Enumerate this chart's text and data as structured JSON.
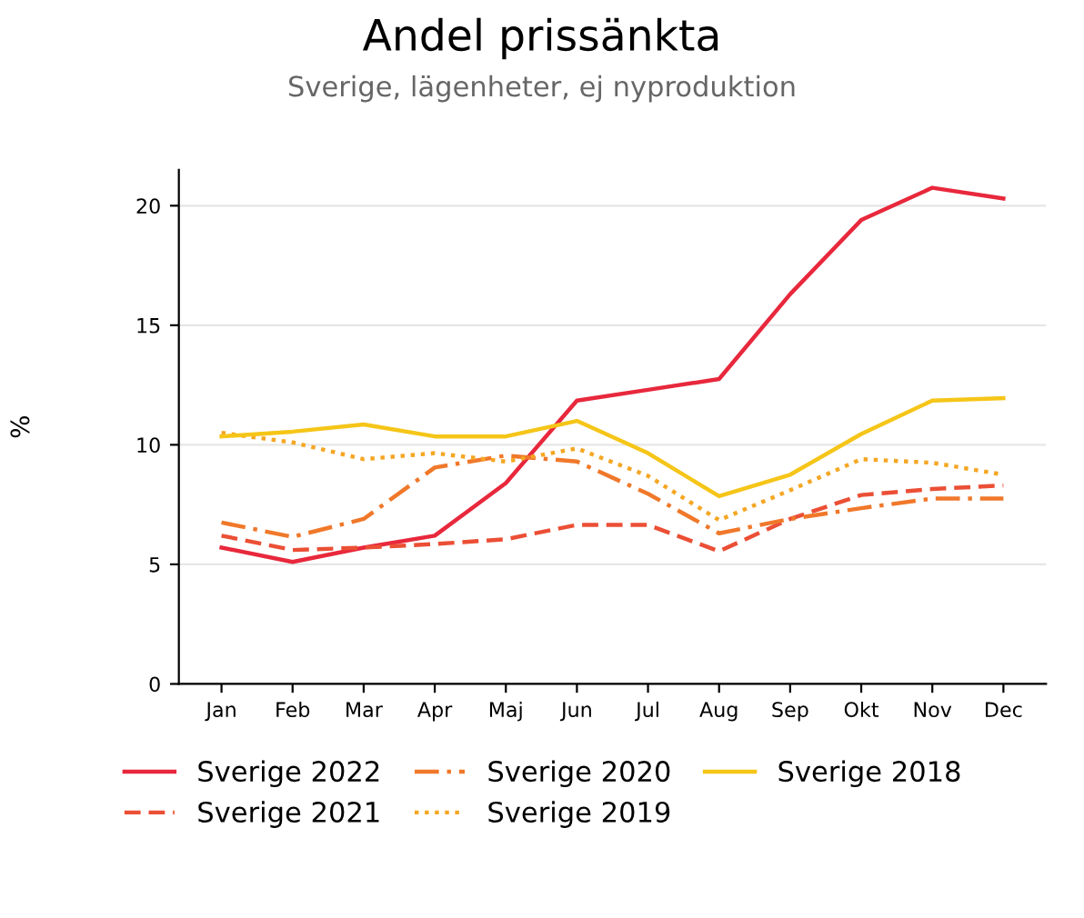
{
  "chart_data": {
    "type": "line",
    "title": "Andel prissänkta",
    "subtitle": "Sverige, lägenheter, ej nyproduktion",
    "ylabel": "%",
    "categories": [
      "Jan",
      "Feb",
      "Mar",
      "Apr",
      "Maj",
      "Jun",
      "Jul",
      "Aug",
      "Sep",
      "Okt",
      "Nov",
      "Dec"
    ],
    "series": [
      {
        "name": "Sverige 2022",
        "color": "#e8283c",
        "line_style": "solid",
        "values": [
          5.7,
          5.1,
          5.7,
          6.2,
          8.4,
          11.85,
          12.3,
          12.75,
          16.3,
          19.4,
          20.75,
          20.3
        ]
      },
      {
        "name": "Sverige 2021",
        "color": "#eb4f35",
        "line_style": "dashed",
        "values": [
          6.2,
          5.6,
          5.7,
          5.85,
          6.05,
          6.65,
          6.65,
          5.55,
          6.9,
          7.9,
          8.15,
          8.3
        ]
      },
      {
        "name": "Sverige 2020",
        "color": "#f0782a",
        "line_style": "dashdot",
        "values": [
          6.75,
          6.15,
          6.9,
          9.05,
          9.55,
          9.3,
          7.95,
          6.3,
          6.9,
          7.35,
          7.75,
          7.75
        ]
      },
      {
        "name": "Sverige 2019",
        "color": "#f5a623",
        "line_style": "dotted",
        "values": [
          10.5,
          10.1,
          9.4,
          9.65,
          9.3,
          9.85,
          8.7,
          6.85,
          8.1,
          9.4,
          9.25,
          8.75
        ]
      },
      {
        "name": "Sverige 2018",
        "color": "#f5c518",
        "line_style": "solid",
        "values": [
          10.35,
          10.55,
          10.85,
          10.35,
          10.35,
          11.0,
          9.65,
          7.85,
          8.75,
          10.45,
          11.85,
          11.95
        ]
      }
    ],
    "ylim": [
      0,
      21.5
    ],
    "yticks": [
      0,
      5,
      10,
      15,
      20
    ],
    "grid": "y",
    "legend": "bottom",
    "marker": "none"
  }
}
